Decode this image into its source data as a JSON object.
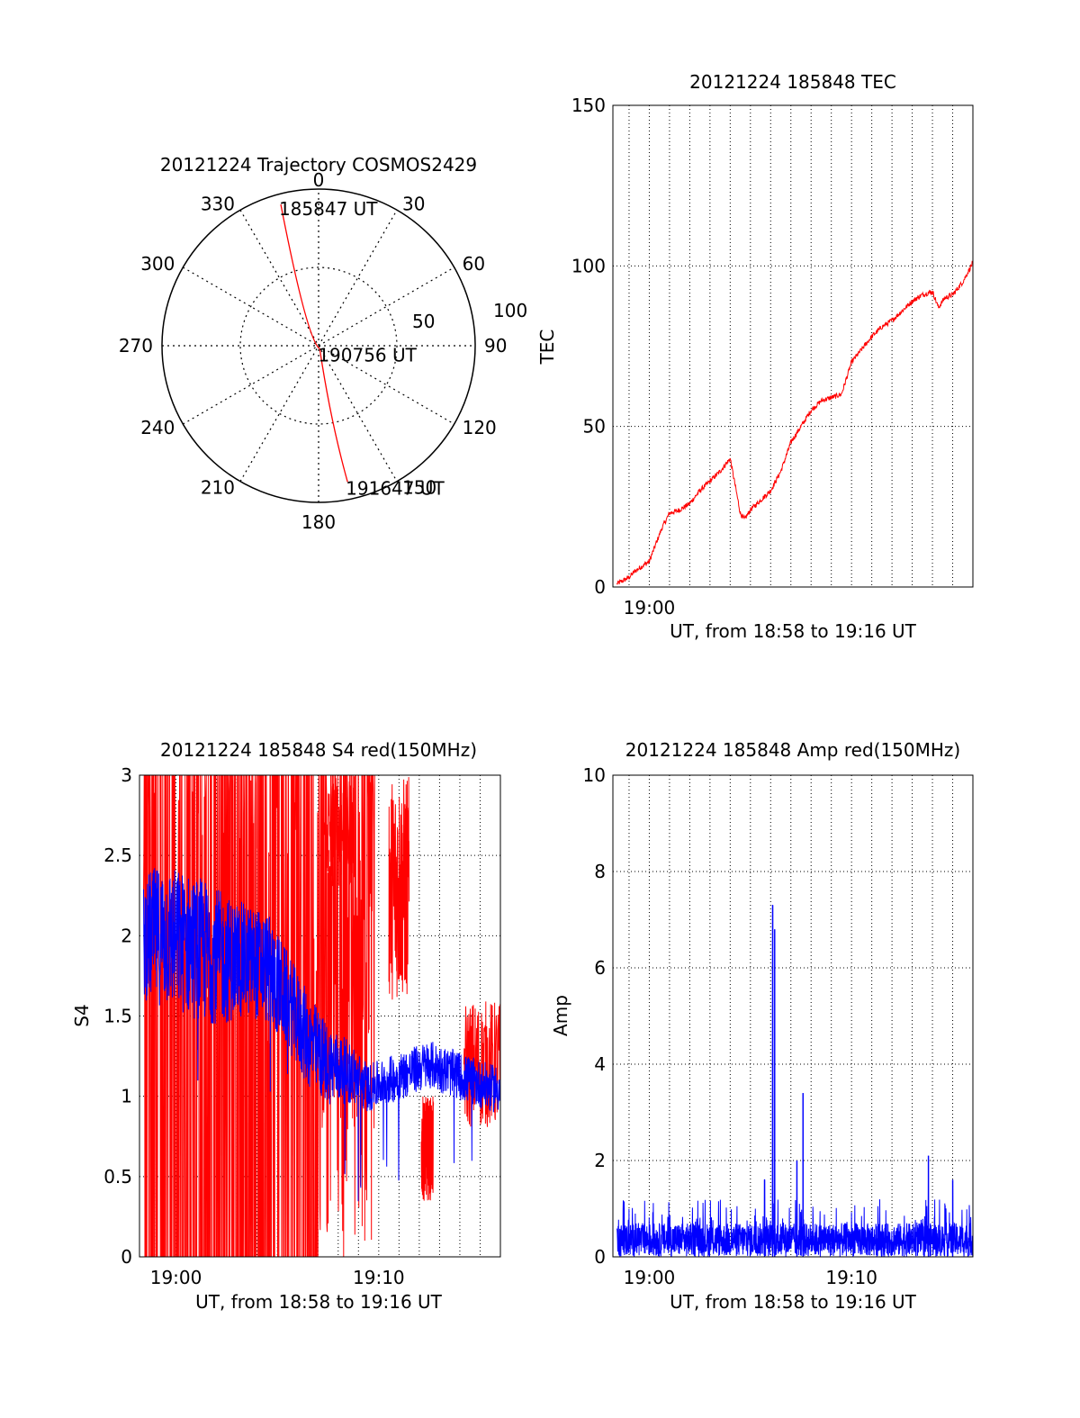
{
  "colors": {
    "red": "#ff0000",
    "blue": "#0000ff",
    "black": "#000000"
  },
  "chart_data": [
    {
      "id": "trajectory",
      "type": "polar",
      "title": "20121224 Trajectory COSMOS2429",
      "azimuth_labels": [
        "0",
        "30",
        "60",
        "90",
        "120",
        "150",
        "180",
        "210",
        "240",
        "270",
        "300",
        "330"
      ],
      "radial_labels": [
        "50",
        "100"
      ],
      "points": [
        {
          "label": "185847 UT",
          "az": 345,
          "zenith": 84
        },
        {
          "label": "190756 UT",
          "az": 160,
          "zenith": 2
        },
        {
          "label": "191647 UT",
          "az": 168,
          "zenith": 80
        }
      ],
      "series_color": "red"
    },
    {
      "id": "tec",
      "type": "line",
      "title": "20121224 185848 TEC",
      "ylabel": "TEC",
      "xlabel": "UT, from 18:58 to 19:16 UT",
      "ylim": [
        0,
        150
      ],
      "yticks": [
        "0",
        "50",
        "100",
        "150"
      ],
      "xticks": [
        "19:00"
      ],
      "xrange_min": [
        58.2,
        76.0
      ],
      "series": [
        {
          "color": "red",
          "x": [
            58.4,
            59.0,
            59.3,
            60.0,
            60.6,
            61.0,
            61.5,
            62.0,
            62.5,
            63.0,
            63.5,
            64.0,
            64.5,
            64.7,
            65.0,
            65.5,
            66.0,
            66.5,
            67.0,
            67.5,
            68.0,
            68.5,
            69.0,
            69.5,
            70.0,
            70.5,
            71.0,
            71.5,
            72.0,
            72.5,
            73.0,
            73.5,
            74.0,
            74.3,
            74.6,
            75.0,
            75.5,
            76.0
          ],
          "y": [
            1,
            3,
            5,
            8,
            18,
            23,
            24,
            26,
            30,
            33,
            36,
            40,
            23,
            21,
            24,
            27,
            30,
            36,
            45,
            50,
            55,
            58,
            59,
            60,
            70,
            74,
            78,
            81,
            83,
            86,
            89,
            91,
            92,
            87,
            90,
            91,
            95,
            101
          ]
        }
      ]
    },
    {
      "id": "s4",
      "type": "line",
      "title": "20121224 185848 S4 red(150MHz)",
      "ylabel": "S4",
      "xlabel": "UT, from 18:58 to 19:16 UT",
      "ylim": [
        0,
        3
      ],
      "yticks": [
        "0",
        "0.5",
        "1",
        "1.5",
        "2",
        "2.5",
        "3"
      ],
      "xticks": [
        "19:00",
        "19:10"
      ],
      "xrange_min": [
        58.2,
        76.0
      ],
      "series": [
        {
          "color": "blue",
          "x": [
            58.4,
            59.5,
            60.5,
            61.5,
            62.5,
            63.5,
            64.5,
            65.5,
            66.5,
            67.5,
            68.5,
            69.5,
            70.5,
            71.5,
            72.5,
            73.5,
            74.5,
            75.5,
            76.0
          ],
          "y": [
            2.0,
            2.0,
            1.95,
            1.9,
            1.85,
            1.85,
            1.8,
            1.6,
            1.35,
            1.2,
            1.15,
            1.05,
            1.1,
            1.15,
            1.2,
            1.15,
            1.1,
            1.05,
            1.05
          ],
          "spread": [
            0.4,
            0.45,
            0.45,
            0.45,
            0.4,
            0.35,
            0.35,
            0.3,
            0.3,
            0.25,
            0.2,
            0.15,
            0.15,
            0.15,
            0.15,
            0.15,
            0.15,
            0.15,
            0.15
          ]
        },
        {
          "color": "red",
          "dense_range": [
            58.4,
            69.8
          ],
          "blocks": [
            {
              "x0": 67.3,
              "x1": 68.8,
              "y0": 2.3,
              "y1": 3.0
            },
            {
              "x0": 70.5,
              "x1": 71.5,
              "y0": 1.6,
              "y1": 3.0
            },
            {
              "x0": 72.1,
              "x1": 72.7,
              "y0": 0.35,
              "y1": 1.0
            },
            {
              "x0": 74.2,
              "x1": 76.0,
              "y0": 0.8,
              "y1": 1.6
            }
          ]
        }
      ]
    },
    {
      "id": "amp",
      "type": "line",
      "title": "20121224 185848 Amp red(150MHz)",
      "ylabel": "Amp",
      "xlabel": "UT, from 18:58 to 19:16 UT",
      "ylim": [
        0,
        10
      ],
      "yticks": [
        "0",
        "2",
        "4",
        "6",
        "8",
        "10"
      ],
      "xticks": [
        "19:00",
        "19:10"
      ],
      "xrange_min": [
        58.2,
        76.0
      ],
      "series": [
        {
          "color": "blue",
          "baseline_max": 0.7,
          "spikes": [
            {
              "x": 66.1,
              "y": 7.3
            },
            {
              "x": 66.2,
              "y": 6.8
            },
            {
              "x": 67.6,
              "y": 3.4
            },
            {
              "x": 67.3,
              "y": 2.0
            },
            {
              "x": 73.8,
              "y": 2.1
            },
            {
              "x": 65.7,
              "y": 1.6
            },
            {
              "x": 75.0,
              "y": 1.6
            }
          ]
        }
      ]
    }
  ]
}
